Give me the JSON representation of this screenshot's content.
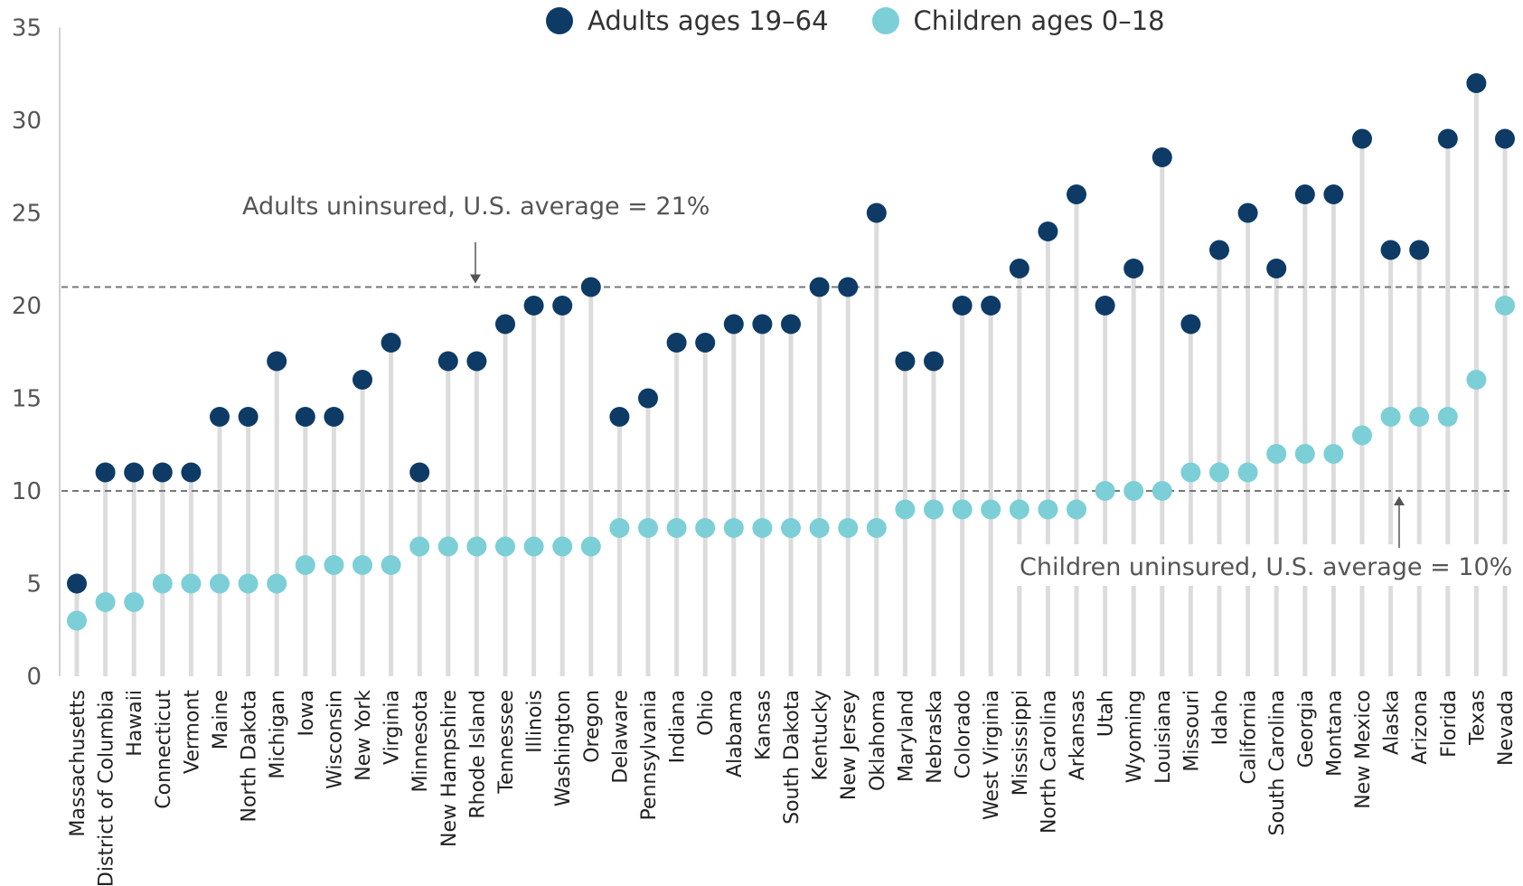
{
  "chart_data": {
    "type": "scatter",
    "title": "",
    "xlabel": "",
    "ylabel": "",
    "ylim": [
      0,
      35
    ],
    "yticks": [
      0,
      5,
      10,
      15,
      20,
      25,
      30,
      35
    ],
    "grid": false,
    "legend_position": "top-center",
    "categories": [
      "Massachusetts",
      "District of Columbia",
      "Hawaii",
      "Connecticut",
      "Vermont",
      "Maine",
      "North Dakota",
      "Michigan",
      "Iowa",
      "Wisconsin",
      "New York",
      "Virginia",
      "Minnesota",
      "New Hampshire",
      "Rhode Island",
      "Tennessee",
      "Illinois",
      "Washington",
      "Oregon",
      "Delaware",
      "Pennsylvania",
      "Indiana",
      "Ohio",
      "Alabama",
      "Kansas",
      "South Dakota",
      "Kentucky",
      "New Jersey",
      "Oklahoma",
      "Maryland",
      "Nebraska",
      "Colorado",
      "West Virginia",
      "Mississippi",
      "North Carolina",
      "Arkansas",
      "Utah",
      "Wyoming",
      "Louisiana",
      "Missouri",
      "Idaho",
      "California",
      "South Carolina",
      "Georgia",
      "Montana",
      "New Mexico",
      "Alaska",
      "Arizona",
      "Florida",
      "Texas",
      "Nevada"
    ],
    "series": [
      {
        "name": "Adults ages 19–64",
        "color": "#0e3b66",
        "values": [
          5,
          11,
          11,
          11,
          11,
          14,
          14,
          17,
          14,
          14,
          16,
          18,
          11,
          17,
          17,
          19,
          20,
          20,
          21,
          14,
          15,
          18,
          18,
          19,
          19,
          19,
          21,
          21,
          25,
          17,
          17,
          20,
          20,
          22,
          24,
          26,
          20,
          22,
          28,
          19,
          23,
          25,
          22,
          26,
          26,
          29,
          23,
          23,
          29,
          32,
          29
        ]
      },
      {
        "name": "Children ages 0–18",
        "color": "#7ccfd6",
        "values": [
          3,
          4,
          4,
          5,
          5,
          5,
          5,
          5,
          6,
          6,
          6,
          6,
          7,
          7,
          7,
          7,
          7,
          7,
          7,
          8,
          8,
          8,
          8,
          8,
          8,
          8,
          8,
          8,
          8,
          9,
          9,
          9,
          9,
          9,
          9,
          9,
          10,
          10,
          10,
          11,
          11,
          11,
          12,
          12,
          12,
          13,
          14,
          14,
          14,
          16,
          20
        ]
      }
    ],
    "reference_lines": [
      {
        "label": "Adults uninsured, U.S. average = 21%",
        "value": 21
      },
      {
        "label": "Children uninsured, U.S. average = 10%",
        "value": 10
      }
    ]
  }
}
